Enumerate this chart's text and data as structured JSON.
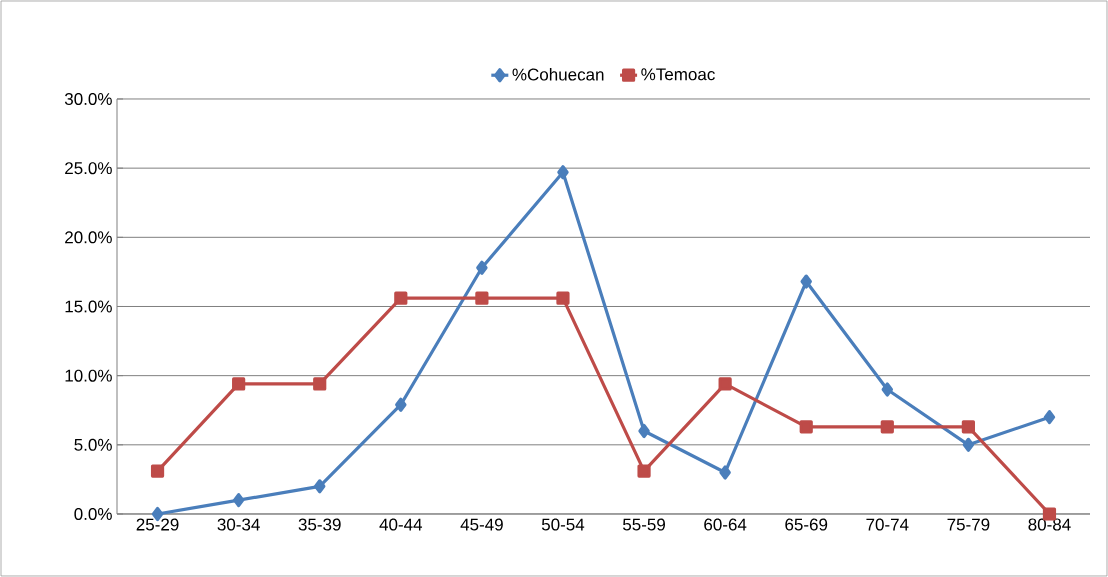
{
  "chart_data": {
    "type": "line",
    "categories": [
      "25-29",
      "30-34",
      "35-39",
      "40-44",
      "45-49",
      "50-54",
      "55-59",
      "60-64",
      "65-69",
      "70-74",
      "75-79",
      "80-84"
    ],
    "series": [
      {
        "name": "%Cohuecan",
        "color": "#4a7ebb",
        "marker": "diamond",
        "values": [
          0,
          1.0,
          2.0,
          7.9,
          17.8,
          24.7,
          6.0,
          3.0,
          16.8,
          9.0,
          5.0,
          7.0
        ]
      },
      {
        "name": "%Temoac",
        "color": "#be4b48",
        "marker": "square",
        "values": [
          3.1,
          9.4,
          9.4,
          15.6,
          15.6,
          15.6,
          3.1,
          9.4,
          6.3,
          6.3,
          6.3,
          0
        ]
      }
    ],
    "ylim": [
      0,
      30
    ],
    "yticks": [
      {
        "value": 0,
        "label": "0.0%"
      },
      {
        "value": 5,
        "label": "5.0%"
      },
      {
        "value": 10,
        "label": "10.0%"
      },
      {
        "value": 15,
        "label": "15.0%"
      },
      {
        "value": 20,
        "label": "20.0%"
      },
      {
        "value": 25,
        "label": "25.0%"
      },
      {
        "value": 30,
        "label": "30.0%"
      }
    ],
    "grid": "y",
    "legend": "top"
  }
}
